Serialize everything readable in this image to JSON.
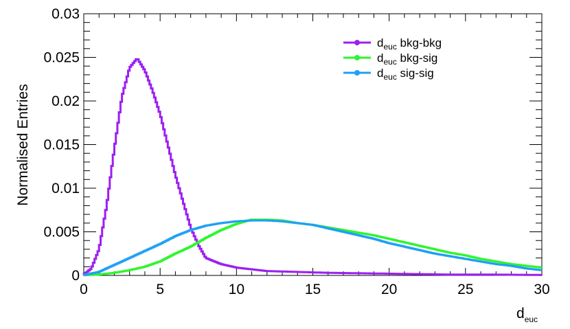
{
  "chart_data": {
    "type": "line",
    "step": true,
    "ylabel": "Normalised Entries",
    "xlabel": {
      "base": "d",
      "sub": "euc"
    },
    "xlim": [
      0,
      30
    ],
    "ylim": [
      0,
      0.03
    ],
    "x_ticks": [
      0,
      5,
      10,
      15,
      20,
      25,
      30
    ],
    "x_tick_labels": [
      "0",
      "5",
      "10",
      "15",
      "20",
      "25",
      "30"
    ],
    "y_ticks": [
      0,
      0.005,
      0.01,
      0.015,
      0.02,
      0.025,
      0.03
    ],
    "y_tick_labels": [
      "0",
      "0.005",
      "0.01",
      "0.015",
      "0.02",
      "0.025",
      "0.03"
    ],
    "legend_position": "top-right",
    "grid": false,
    "series": [
      {
        "name": "bkg-bkg",
        "label_base": "d",
        "label_sub": "euc",
        "label_rest": " bkg-bkg",
        "color": "#9b1ff2",
        "x": [
          0,
          0.5,
          1,
          1.5,
          2,
          2.5,
          3,
          3.5,
          4,
          4.5,
          5,
          5.5,
          6,
          6.5,
          7,
          7.5,
          8,
          9,
          10,
          11,
          12,
          14,
          16,
          18,
          20,
          22,
          24,
          26,
          28,
          30
        ],
        "y": [
          0.0001,
          0.0008,
          0.003,
          0.008,
          0.0145,
          0.0205,
          0.0238,
          0.0249,
          0.0235,
          0.0212,
          0.0185,
          0.015,
          0.0115,
          0.0085,
          0.0055,
          0.0035,
          0.002,
          0.0013,
          0.0009,
          0.0007,
          0.0005,
          0.0004,
          0.0003,
          0.00025,
          0.0002,
          0.00015,
          0.0001,
          0.0001,
          8e-05,
          5e-05
        ]
      },
      {
        "name": "bkg-sig",
        "label_base": "d",
        "label_sub": "euc",
        "label_rest": " bkg-sig",
        "color": "#2ef52e",
        "x": [
          0,
          1,
          2,
          3,
          4,
          5,
          6,
          7,
          8,
          9,
          10,
          11,
          12,
          13,
          14,
          15,
          16,
          17,
          18,
          19,
          20,
          21,
          22,
          23,
          24,
          25,
          26,
          27,
          28,
          29,
          30
        ],
        "y": [
          2e-05,
          0.0001,
          0.0003,
          0.0006,
          0.001,
          0.0016,
          0.0025,
          0.0033,
          0.0043,
          0.0052,
          0.0059,
          0.0064,
          0.0064,
          0.0063,
          0.006,
          0.0058,
          0.0055,
          0.0052,
          0.0049,
          0.0046,
          0.0042,
          0.0038,
          0.0034,
          0.003,
          0.0026,
          0.0023,
          0.0019,
          0.0016,
          0.0013,
          0.0011,
          0.0009
        ]
      },
      {
        "name": "sig-sig",
        "label_base": "d",
        "label_sub": "euc",
        "label_rest": " sig-sig",
        "color": "#1ea0f5",
        "x": [
          0,
          1,
          2,
          3,
          4,
          5,
          6,
          7,
          8,
          9,
          10,
          11,
          12,
          13,
          14,
          15,
          16,
          17,
          18,
          19,
          20,
          21,
          22,
          23,
          24,
          25,
          26,
          27,
          28,
          29,
          30
        ],
        "y": [
          5e-05,
          0.0004,
          0.0012,
          0.002,
          0.0028,
          0.0036,
          0.0045,
          0.0052,
          0.0057,
          0.006,
          0.0062,
          0.0063,
          0.0063,
          0.0062,
          0.006,
          0.0058,
          0.0054,
          0.005,
          0.0046,
          0.0042,
          0.0037,
          0.0033,
          0.0029,
          0.0025,
          0.0022,
          0.0019,
          0.0016,
          0.0013,
          0.0011,
          0.0008,
          0.0006
        ]
      }
    ]
  }
}
